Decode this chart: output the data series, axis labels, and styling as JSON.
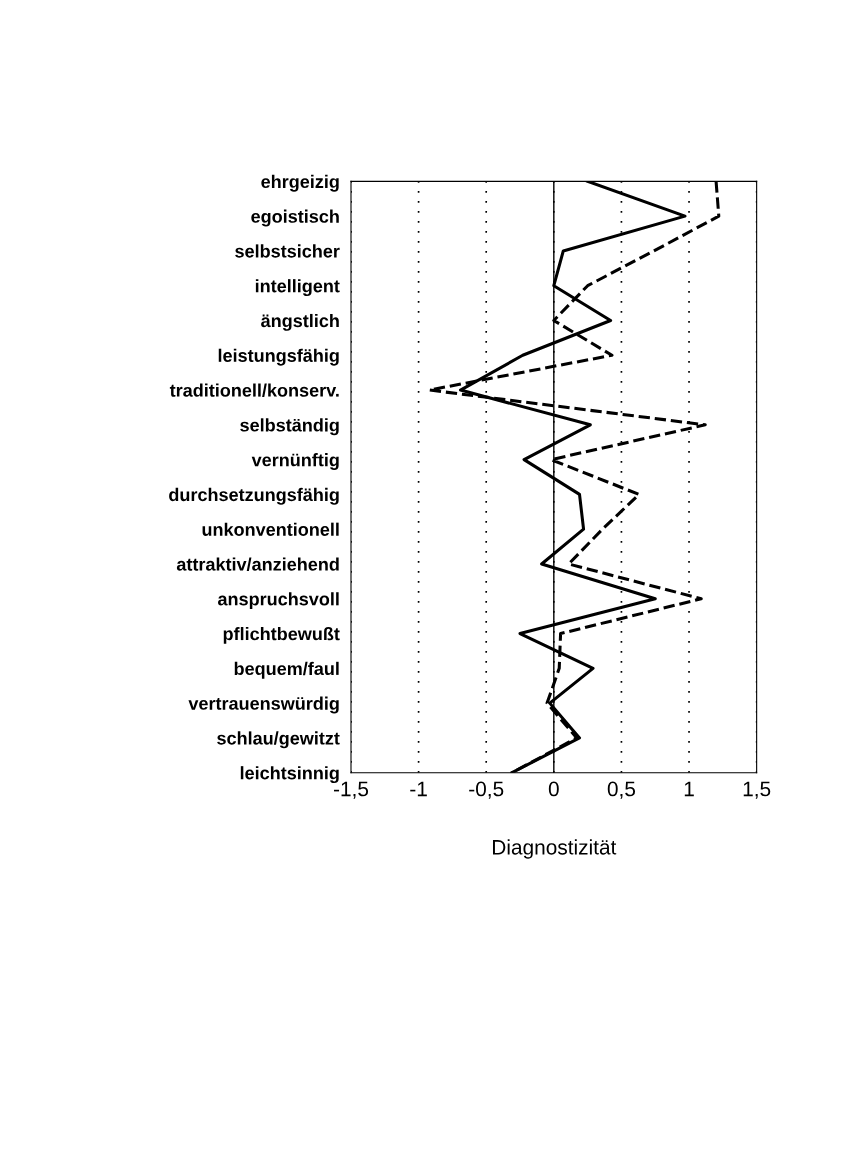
{
  "chart_data": {
    "type": "line",
    "orientation": "horizontal",
    "xlabel": "Diagnostizität",
    "categories": [
      "ehrgeizig",
      "egoistisch",
      "selbstsicher",
      "intelligent",
      "ängstlich",
      "leistungsfähig",
      "traditionell/konserv.",
      "selbständig",
      "vernünftig",
      "durchsetzungsfähig",
      "unkonventionell",
      "attraktiv/anziehend",
      "anspruchsvoll",
      "pflichtbewußt",
      "bequem/faul",
      "vertrauenswürdig",
      "schlau/gewitzt",
      "leichtsinnig"
    ],
    "series": [
      {
        "color": "#000000",
        "line_style": "solid",
        "values": [
          0.25,
          0.97,
          0.07,
          0.0,
          0.42,
          -0.23,
          -0.69,
          0.27,
          -0.22,
          0.19,
          0.22,
          -0.09,
          0.75,
          -0.25,
          0.29,
          -0.03,
          0.19,
          -0.31
        ]
      },
      {
        "color": "#000000",
        "line_style": "dashed",
        "values": [
          1.2,
          1.22,
          0.74,
          0.25,
          0.0,
          0.43,
          -0.92,
          1.12,
          -0.02,
          0.63,
          0.36,
          0.11,
          1.09,
          0.05,
          0.04,
          -0.05,
          0.17,
          -0.31
        ]
      }
    ],
    "xlim": [
      -1.5,
      1.5
    ],
    "xticks": [
      {
        "value": -1.5,
        "label": "-1,5"
      },
      {
        "value": -1,
        "label": "-1"
      },
      {
        "value": -0.5,
        "label": "-0,5"
      },
      {
        "value": 0,
        "label": "0"
      },
      {
        "value": 0.5,
        "label": "0,5"
      },
      {
        "value": 1,
        "label": "1"
      },
      {
        "value": 1.5,
        "label": "1,5"
      }
    ],
    "grid": "x",
    "ref_lines": [
      {
        "axis": "x",
        "value": 0,
        "color": "#000000",
        "line_style": "solid"
      }
    ],
    "legend": false
  }
}
